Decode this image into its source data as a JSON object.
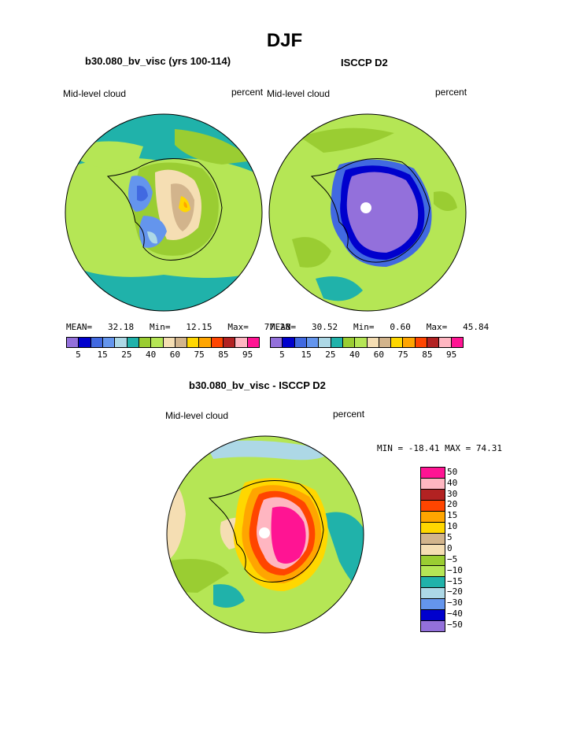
{
  "title": "DJF",
  "panels": [
    {
      "title": "b30.080_bv_visc (yrs 100-114)",
      "left_label": "Mid-level cloud",
      "right_label": "percent",
      "stats": {
        "mean_label": "MEAN=",
        "mean": "32.18",
        "min_label": "Min=",
        "min": "12.15",
        "max_label": "Max=",
        "max": "77.28"
      }
    },
    {
      "title": "ISCCP D2",
      "left_label": "Mid-level cloud",
      "right_label": "percent",
      "stats": {
        "mean_label": "MEAN=",
        "mean": "30.52",
        "min_label": "Min=",
        "min": "0.60",
        "max_label": "Max=",
        "max": "45.84"
      }
    },
    {
      "title": "b30.080_bv_visc - ISCCP D2",
      "left_label": "Mid-level cloud",
      "right_label": "percent",
      "minmax": "MIN = -18.41  MAX =  74.31"
    }
  ],
  "colorbar_top": {
    "colors": [
      "#9370db",
      "#0000cd",
      "#4169e1",
      "#6495ed",
      "#add8e6",
      "#20b2aa",
      "#9acd32",
      "#b5e655",
      "#f5deb3",
      "#d2b48c",
      "#ffd700",
      "#ffa500",
      "#ff4500",
      "#b22222",
      "#ffb6c1",
      "#ff1493"
    ],
    "labels": [
      "5",
      "15",
      "25",
      "40",
      "60",
      "75",
      "85",
      "95"
    ]
  },
  "colorbar_diff": {
    "colors": [
      "#ff1493",
      "#ffb6c1",
      "#b22222",
      "#ff4500",
      "#ffa500",
      "#ffd700",
      "#d2b48c",
      "#f5deb3",
      "#9acd32",
      "#b5e655",
      "#20b2aa",
      "#add8e6",
      "#6495ed",
      "#0000cd",
      "#9370db"
    ],
    "labels": [
      "50",
      "40",
      "30",
      "20",
      "15",
      "10",
      "5",
      "0",
      "−5",
      "−10",
      "−15",
      "−20",
      "−30",
      "−40",
      "−50"
    ]
  },
  "chart_data": [
    {
      "type": "heatmap",
      "title": "b30.080_bv_visc (yrs 100-114)",
      "subtitle": "Mid-level cloud",
      "units": "percent",
      "projection": "south-polar stereographic",
      "mean": 32.18,
      "min": 12.15,
      "max": 77.28,
      "levels": [
        5,
        10,
        15,
        20,
        25,
        30,
        40,
        50,
        60,
        70,
        75,
        80,
        85,
        90,
        95
      ]
    },
    {
      "type": "heatmap",
      "title": "ISCCP D2",
      "subtitle": "Mid-level cloud",
      "units": "percent",
      "projection": "south-polar stereographic",
      "mean": 30.52,
      "min": 0.6,
      "max": 45.84,
      "levels": [
        5,
        10,
        15,
        20,
        25,
        30,
        40,
        50,
        60,
        70,
        75,
        80,
        85,
        90,
        95
      ]
    },
    {
      "type": "heatmap",
      "title": "b30.080_bv_visc - ISCCP D2",
      "subtitle": "Mid-level cloud",
      "units": "percent",
      "projection": "south-polar stereographic",
      "min": -18.41,
      "max": 74.31,
      "levels": [
        -50,
        -40,
        -30,
        -20,
        -15,
        -10,
        -5,
        0,
        5,
        10,
        15,
        20,
        30,
        40,
        50
      ]
    }
  ]
}
